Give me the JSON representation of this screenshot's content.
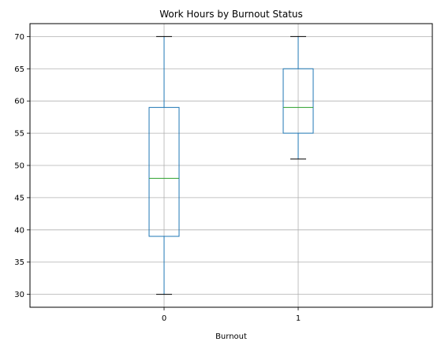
{
  "chart_data": {
    "type": "boxplot",
    "title": "Work Hours by Burnout Status",
    "xlabel": "Burnout",
    "ylabel": "",
    "ylim": [
      28,
      72
    ],
    "yticks": [
      30,
      35,
      40,
      45,
      50,
      55,
      60,
      65,
      70
    ],
    "grid": true,
    "categories": [
      "0",
      "1"
    ],
    "boxes": [
      {
        "category": "0",
        "whisker_low": 30,
        "q1": 39,
        "median": 48,
        "q3": 59,
        "whisker_high": 70
      },
      {
        "category": "1",
        "whisker_low": 51,
        "q1": 55,
        "median": 59,
        "q3": 65,
        "whisker_high": 70
      }
    ],
    "colors": {
      "box": "#1f77b4",
      "median": "#2ca02c",
      "whisker_cap": "#000000",
      "grid": "#b0b0b0"
    }
  }
}
